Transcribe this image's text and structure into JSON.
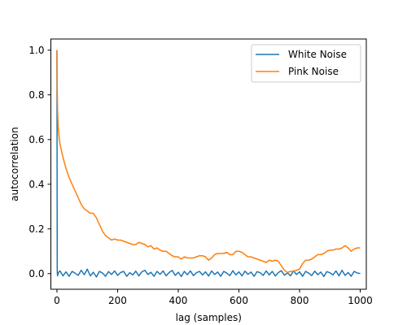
{
  "chart_data": {
    "type": "line",
    "title": "",
    "xlabel": "lag (samples)",
    "ylabel": "autocorrelation",
    "xlim": [
      -20,
      1020
    ],
    "ylim": [
      -0.07,
      1.05
    ],
    "xticks": [
      0,
      200,
      400,
      600,
      800,
      1000
    ],
    "xtick_labels": [
      "0",
      "200",
      "400",
      "600",
      "800",
      "1000"
    ],
    "yticks": [
      0.0,
      0.2,
      0.4,
      0.6,
      0.8,
      1.0
    ],
    "ytick_labels": [
      "0.0",
      "0.2",
      "0.4",
      "0.6",
      "0.8",
      "1.0"
    ],
    "grid": false,
    "legend_position": "top-right",
    "series": [
      {
        "name": "White Noise",
        "color": "#1f77b4",
        "x": [
          0,
          1,
          2,
          5,
          10,
          20,
          30,
          40,
          50,
          60,
          70,
          80,
          90,
          100,
          110,
          120,
          130,
          140,
          150,
          160,
          170,
          180,
          190,
          200,
          210,
          220,
          230,
          240,
          250,
          260,
          270,
          280,
          290,
          300,
          310,
          320,
          330,
          340,
          350,
          360,
          370,
          380,
          390,
          400,
          410,
          420,
          430,
          440,
          450,
          460,
          470,
          480,
          490,
          500,
          510,
          520,
          530,
          540,
          550,
          560,
          570,
          580,
          590,
          600,
          610,
          620,
          630,
          640,
          650,
          660,
          670,
          680,
          690,
          700,
          710,
          720,
          730,
          740,
          750,
          760,
          770,
          780,
          790,
          800,
          810,
          820,
          830,
          840,
          850,
          860,
          870,
          880,
          890,
          900,
          910,
          920,
          930,
          940,
          950,
          960,
          970,
          980,
          990,
          1000
        ],
        "values": [
          1.0,
          0.01,
          -0.01,
          0.005,
          0.012,
          -0.01,
          0.008,
          -0.012,
          0.01,
          0.002,
          -0.008,
          0.015,
          -0.005,
          0.02,
          -0.01,
          0.006,
          -0.015,
          0.01,
          0.003,
          -0.012,
          0.009,
          -0.004,
          0.012,
          -0.008,
          0.005,
          0.01,
          -0.012,
          0.004,
          -0.006,
          0.011,
          -0.01,
          0.008,
          0.015,
          -0.004,
          0.006,
          -0.012,
          0.01,
          -0.003,
          0.012,
          -0.01,
          0.005,
          0.014,
          -0.008,
          0.006,
          -0.013,
          0.01,
          -0.005,
          0.012,
          -0.009,
          0.004,
          0.01,
          -0.006,
          0.008,
          -0.011,
          0.012,
          -0.004,
          0.007,
          -0.012,
          0.01,
          0.002,
          -0.009,
          0.013,
          -0.006,
          0.008,
          -0.01,
          0.011,
          -0.003,
          0.007,
          -0.012,
          0.009,
          0.004,
          -0.008,
          0.012,
          -0.006,
          0.01,
          -0.011,
          0.005,
          0.013,
          -0.007,
          0.003,
          -0.01,
          0.012,
          -0.004,
          0.008,
          -0.012,
          0.01,
          0.002,
          -0.009,
          0.011,
          -0.005,
          0.007,
          -0.013,
          0.009,
          0.004,
          -0.006,
          0.012,
          -0.01,
          0.015,
          -0.008,
          0.005,
          -0.012,
          0.01,
          0.003,
          0.0
        ]
      },
      {
        "name": "Pink Noise",
        "color": "#ff7f0e",
        "x": [
          0,
          1,
          2,
          3,
          5,
          8,
          10,
          15,
          20,
          30,
          40,
          50,
          60,
          70,
          80,
          90,
          100,
          110,
          120,
          130,
          140,
          150,
          160,
          170,
          180,
          190,
          200,
          210,
          220,
          230,
          240,
          250,
          260,
          270,
          280,
          290,
          300,
          310,
          320,
          330,
          340,
          350,
          360,
          370,
          380,
          390,
          400,
          410,
          420,
          430,
          440,
          450,
          460,
          470,
          480,
          490,
          500,
          510,
          520,
          530,
          540,
          550,
          560,
          570,
          580,
          590,
          600,
          610,
          620,
          630,
          640,
          650,
          660,
          670,
          680,
          690,
          700,
          710,
          720,
          730,
          740,
          750,
          760,
          770,
          780,
          790,
          800,
          810,
          820,
          830,
          840,
          850,
          860,
          870,
          880,
          890,
          900,
          910,
          920,
          930,
          940,
          950,
          960,
          970,
          980,
          990,
          1000
        ],
        "values": [
          1.0,
          0.82,
          0.74,
          0.69,
          0.64,
          0.6,
          0.58,
          0.55,
          0.52,
          0.47,
          0.43,
          0.4,
          0.37,
          0.34,
          0.31,
          0.29,
          0.28,
          0.27,
          0.27,
          0.25,
          0.22,
          0.19,
          0.17,
          0.16,
          0.15,
          0.155,
          0.15,
          0.15,
          0.145,
          0.14,
          0.135,
          0.13,
          0.13,
          0.14,
          0.135,
          0.13,
          0.12,
          0.125,
          0.11,
          0.115,
          0.105,
          0.1,
          0.1,
          0.09,
          0.08,
          0.075,
          0.075,
          0.065,
          0.075,
          0.07,
          0.07,
          0.07,
          0.075,
          0.08,
          0.08,
          0.075,
          0.06,
          0.07,
          0.085,
          0.09,
          0.09,
          0.09,
          0.095,
          0.085,
          0.085,
          0.1,
          0.1,
          0.095,
          0.085,
          0.075,
          0.075,
          0.07,
          0.065,
          0.06,
          0.055,
          0.05,
          0.06,
          0.055,
          0.06,
          0.055,
          0.035,
          0.015,
          0.005,
          0.01,
          0.01,
          0.015,
          0.02,
          0.045,
          0.06,
          0.06,
          0.065,
          0.075,
          0.085,
          0.085,
          0.09,
          0.1,
          0.105,
          0.105,
          0.11,
          0.11,
          0.115,
          0.125,
          0.115,
          0.1,
          0.11,
          0.115,
          0.115
        ]
      }
    ]
  }
}
